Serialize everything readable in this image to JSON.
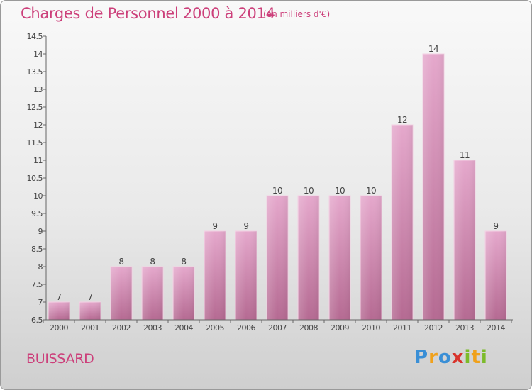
{
  "header": {
    "title": "Charges de Personnel 2000 à 2014",
    "subtitle": "(en milliers d'€)"
  },
  "footer": {
    "location": "BUISSARD",
    "logo": [
      "P",
      "r",
      "o",
      "x",
      "i",
      "t",
      "i"
    ],
    "logo_colors": [
      "#3a8fd6",
      "#f0a11b",
      "#3a8fd6",
      "#d8342c",
      "#7cbb2a",
      "#f0a11b",
      "#7cbb2a"
    ]
  },
  "colors": {
    "title": "#cc3f7a",
    "bar_light": "#e5a8cc",
    "bar_dark": "#b56a92",
    "axis": "#555555"
  },
  "chart_data": {
    "type": "bar",
    "title": "Charges de Personnel 2000 à 2014",
    "subtitle": "(en milliers d'€)",
    "xlabel": "",
    "ylabel": "",
    "categories": [
      "2000",
      "2001",
      "2002",
      "2003",
      "2004",
      "2005",
      "2006",
      "2007",
      "2008",
      "2009",
      "2010",
      "2011",
      "2012",
      "2013",
      "2014"
    ],
    "values": [
      7,
      7,
      8,
      8,
      8,
      9,
      9,
      10,
      10,
      10,
      10,
      12,
      14,
      11,
      9
    ],
    "data_labels": [
      "7",
      "7",
      "8",
      "8",
      "8",
      "9",
      "9",
      "10",
      "10",
      "10",
      "10",
      "12",
      "14",
      "11",
      "9"
    ],
    "ylim": [
      6.5,
      14.5
    ],
    "yticks": [
      6.5,
      7,
      7.5,
      8,
      8.5,
      9,
      9.5,
      10,
      10.5,
      11,
      11.5,
      12,
      12.5,
      13,
      13.5,
      14,
      14.5
    ],
    "ytick_labels": [
      "6.5",
      "7",
      "7.5",
      "8",
      "8.5",
      "9",
      "9.5",
      "10",
      "10.5",
      "11",
      "11.5",
      "12",
      "12.5",
      "13",
      "13.5",
      "14",
      "14.5"
    ],
    "grid": false,
    "legend": "none"
  }
}
